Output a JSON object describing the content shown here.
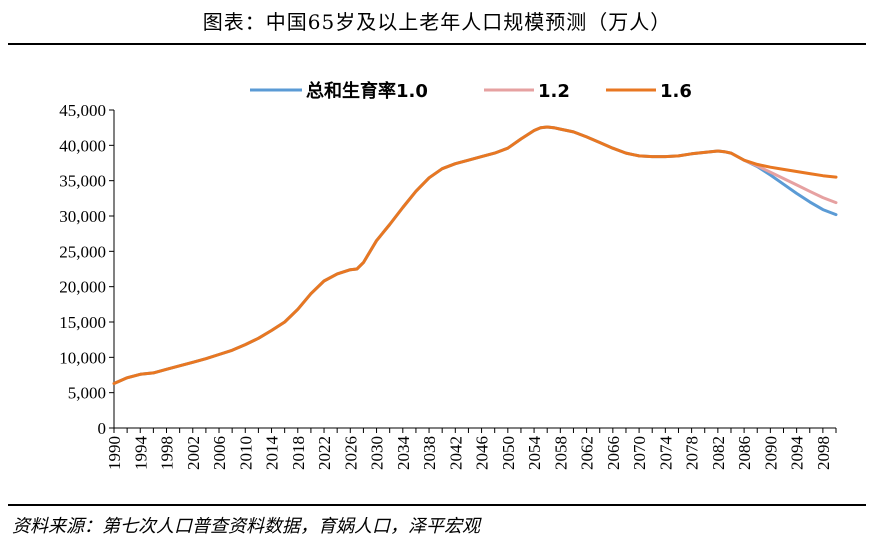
{
  "chart_data": {
    "type": "line",
    "title": "图表：中国65岁及以上老年人口规模预测（万人）",
    "source": "资料来源：第七次人口普查资料数据，育娲人口，泽平宏观",
    "xlabel": "",
    "ylabel": "",
    "ylim": [
      0,
      45000
    ],
    "yticks": [
      0,
      5000,
      10000,
      15000,
      20000,
      25000,
      30000,
      35000,
      40000,
      45000
    ],
    "ytick_labels": [
      "0",
      "5,000",
      "10,000",
      "15,000",
      "20,000",
      "25,000",
      "30,000",
      "35,000",
      "40,000",
      "45,000"
    ],
    "xlim": [
      1990,
      2100
    ],
    "xtick_labels": [
      "1990",
      "1994",
      "1998",
      "2002",
      "2006",
      "2010",
      "2014",
      "2018",
      "2022",
      "2026",
      "2030",
      "2034",
      "2038",
      "2042",
      "2046",
      "2050",
      "2054",
      "2058",
      "2062",
      "2066",
      "2070",
      "2074",
      "2078",
      "2082",
      "2086",
      "2090",
      "2094",
      "2098"
    ],
    "legend_position": "top",
    "series": [
      {
        "name": "总和生育率1.0",
        "color": "#5B9BD5",
        "x": [
          1990,
          1992,
          1994,
          1996,
          1998,
          2000,
          2002,
          2004,
          2006,
          2008,
          2010,
          2012,
          2014,
          2016,
          2018,
          2020,
          2022,
          2024,
          2026,
          2027,
          2028,
          2030,
          2032,
          2034,
          2036,
          2038,
          2040,
          2042,
          2044,
          2046,
          2048,
          2050,
          2052,
          2054,
          2055,
          2056,
          2057,
          2058,
          2060,
          2062,
          2064,
          2066,
          2068,
          2070,
          2072,
          2074,
          2076,
          2078,
          2080,
          2082,
          2083,
          2084,
          2086,
          2088,
          2090,
          2092,
          2094,
          2096,
          2098,
          2100
        ],
        "values": [
          6300,
          7100,
          7600,
          7800,
          8300,
          8800,
          9300,
          9800,
          10400,
          11000,
          11800,
          12700,
          13800,
          15000,
          16800,
          19000,
          20800,
          21800,
          22400,
          22500,
          23400,
          26500,
          28800,
          31200,
          33500,
          35400,
          36700,
          37400,
          37900,
          38400,
          38900,
          39600,
          40900,
          42100,
          42500,
          42600,
          42500,
          42300,
          41900,
          41200,
          40400,
          39600,
          38900,
          38500,
          38400,
          38400,
          38500,
          38800,
          39000,
          39200,
          39100,
          38900,
          37900,
          37000,
          35800,
          34500,
          33200,
          32000,
          30900,
          30200
        ]
      },
      {
        "name": "1.2",
        "color": "#E6A1A1",
        "x": [
          2086,
          2088,
          2090,
          2092,
          2094,
          2096,
          2098,
          2100
        ],
        "values": [
          37900,
          37100,
          36200,
          35300,
          34400,
          33500,
          32600,
          31900
        ]
      },
      {
        "name": "1.6",
        "color": "#E87722",
        "x": [
          1990,
          1992,
          1994,
          1996,
          1998,
          2000,
          2002,
          2004,
          2006,
          2008,
          2010,
          2012,
          2014,
          2016,
          2018,
          2020,
          2022,
          2024,
          2026,
          2027,
          2028,
          2030,
          2032,
          2034,
          2036,
          2038,
          2040,
          2042,
          2044,
          2046,
          2048,
          2050,
          2052,
          2054,
          2055,
          2056,
          2057,
          2058,
          2060,
          2062,
          2064,
          2066,
          2068,
          2070,
          2072,
          2074,
          2076,
          2078,
          2080,
          2082,
          2083,
          2084,
          2086,
          2088,
          2090,
          2092,
          2094,
          2096,
          2098,
          2100
        ],
        "values": [
          6300,
          7100,
          7600,
          7800,
          8300,
          8800,
          9300,
          9800,
          10400,
          11000,
          11800,
          12700,
          13800,
          15000,
          16800,
          19000,
          20800,
          21800,
          22400,
          22500,
          23400,
          26500,
          28800,
          31200,
          33500,
          35400,
          36700,
          37400,
          37900,
          38400,
          38900,
          39600,
          40900,
          42100,
          42500,
          42600,
          42500,
          42300,
          41900,
          41200,
          40400,
          39600,
          38900,
          38500,
          38400,
          38400,
          38500,
          38800,
          39000,
          39200,
          39100,
          38900,
          37900,
          37300,
          36900,
          36600,
          36300,
          36000,
          35700,
          35500
        ]
      }
    ]
  }
}
